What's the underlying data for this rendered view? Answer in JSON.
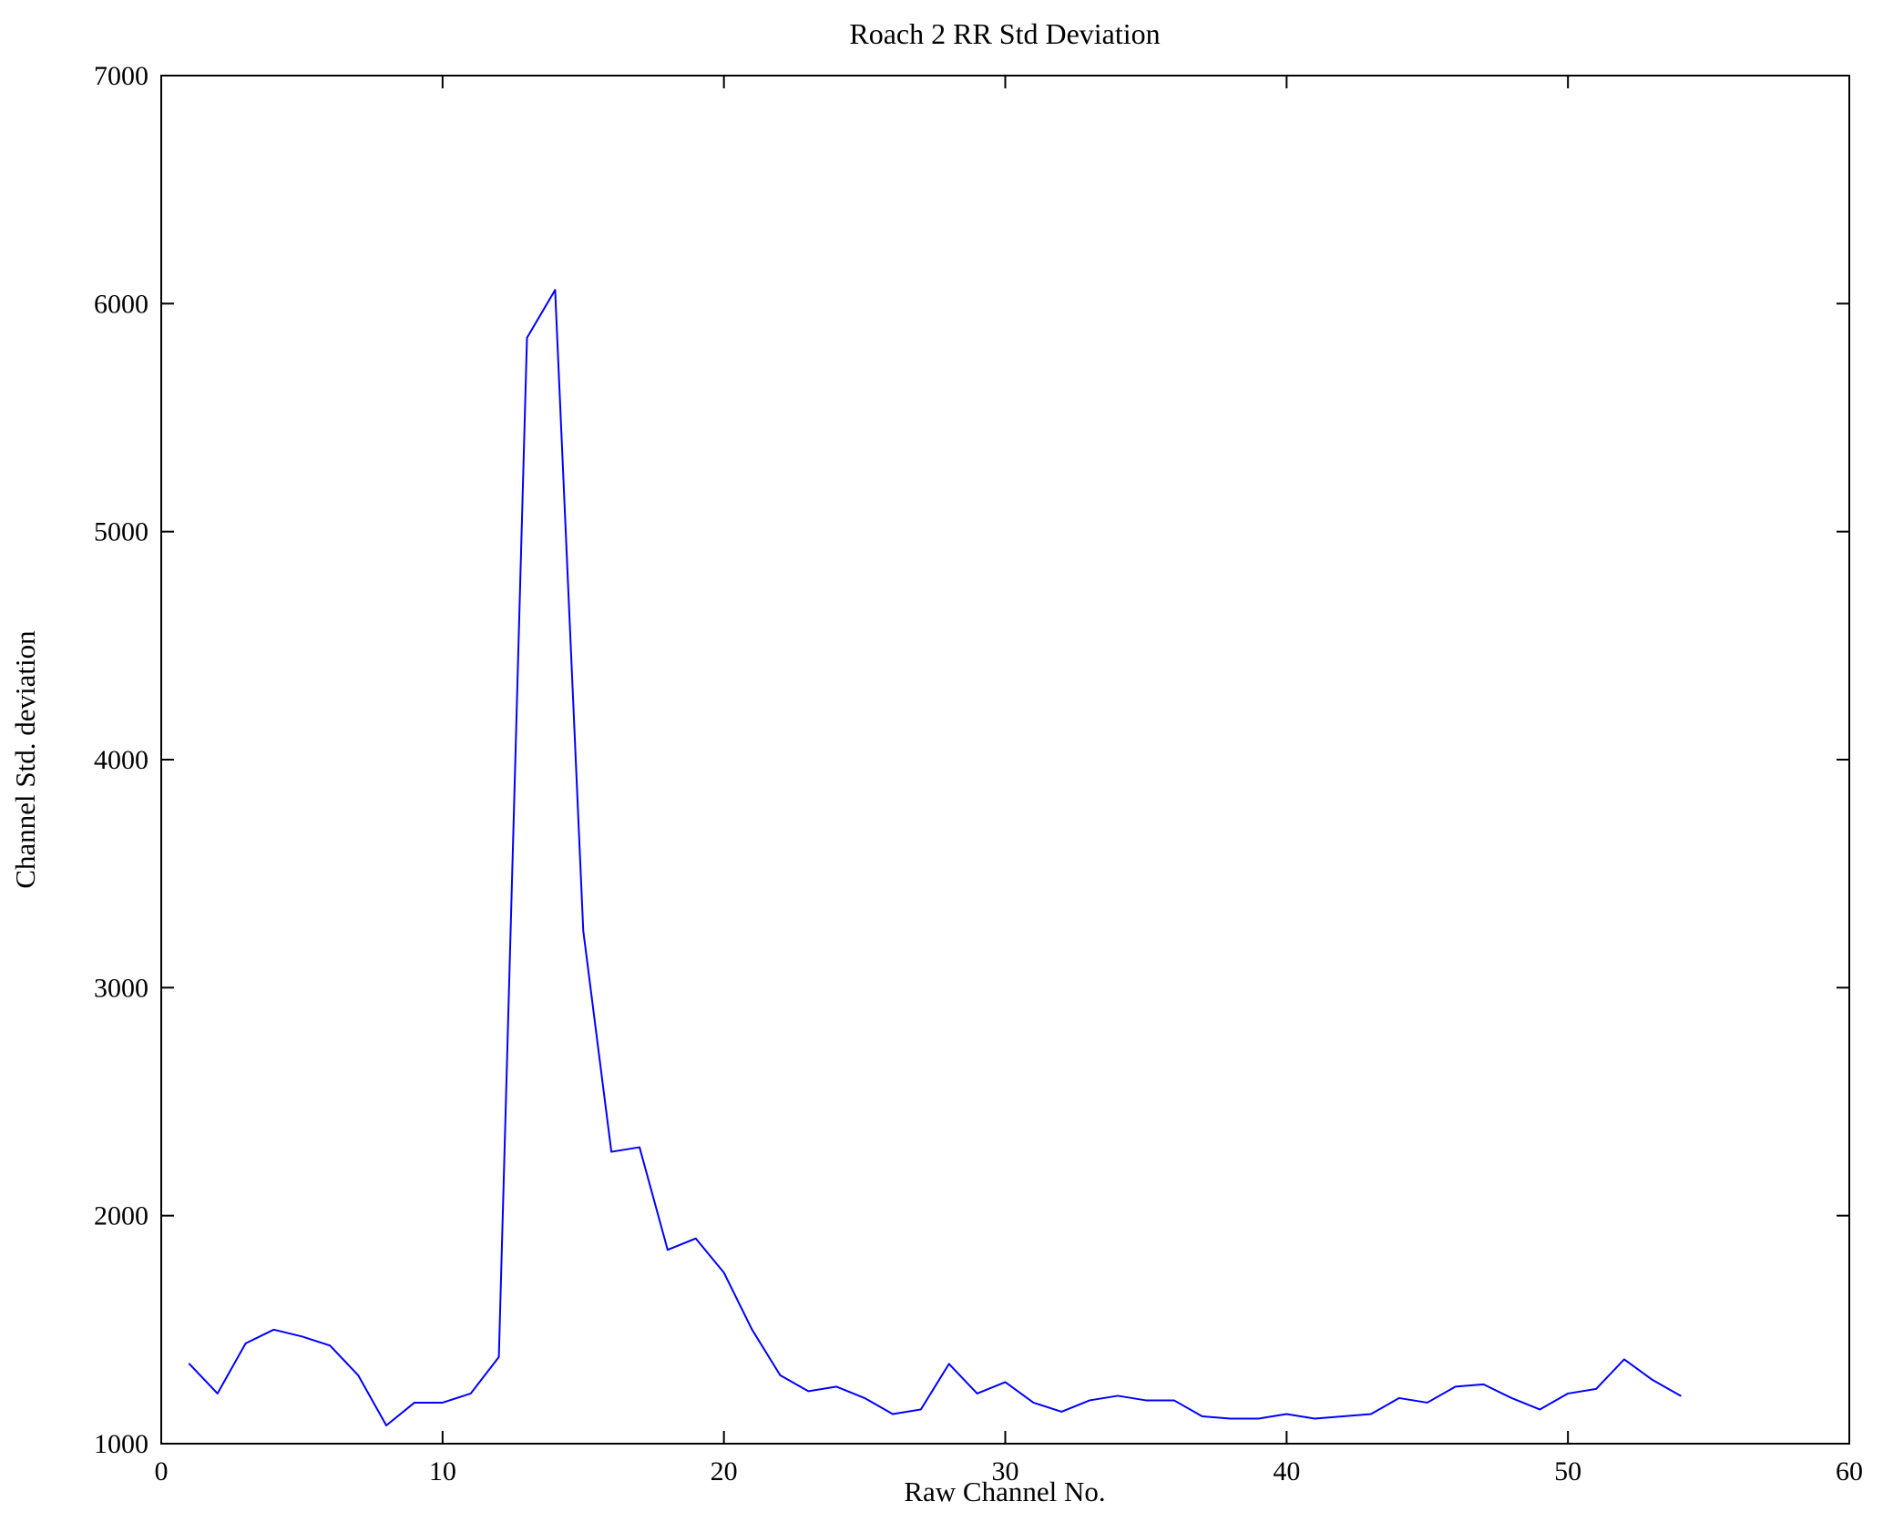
{
  "figure": {
    "title": "Roach 2 RR Std Deviation",
    "xlabel": "Raw Channel No.",
    "ylabel": "Channel Std. deviation"
  },
  "chart_data": {
    "type": "line",
    "title": "Roach 2 RR Std Deviation",
    "xlabel": "Raw Channel No.",
    "ylabel": "Channel Std. deviation",
    "xlim": [
      0,
      60
    ],
    "ylim": [
      1000,
      7000
    ],
    "x_ticks": [
      0,
      10,
      20,
      30,
      40,
      50,
      60
    ],
    "y_ticks": [
      1000,
      2000,
      3000,
      4000,
      5000,
      6000,
      7000
    ],
    "grid": false,
    "legend": null,
    "line_color": "#0000ff",
    "axis_color": "#000000",
    "x": [
      1,
      2,
      3,
      4,
      5,
      6,
      7,
      8,
      9,
      10,
      11,
      12,
      13,
      14,
      15,
      16,
      17,
      18,
      19,
      20,
      21,
      22,
      23,
      24,
      25,
      26,
      27,
      28,
      29,
      30,
      31,
      32,
      33,
      34,
      35,
      36,
      37,
      38,
      39,
      40,
      41,
      42,
      43,
      44,
      45,
      46,
      47,
      48,
      49,
      50,
      51,
      52,
      53,
      54
    ],
    "y": [
      1350,
      1220,
      1440,
      1500,
      1470,
      1430,
      1300,
      1080,
      1180,
      1180,
      1220,
      1380,
      5850,
      6060,
      3250,
      2280,
      2300,
      1850,
      1900,
      1750,
      1500,
      1300,
      1230,
      1250,
      1200,
      1130,
      1150,
      1350,
      1220,
      1270,
      1180,
      1140,
      1190,
      1210,
      1190,
      1190,
      1120,
      1110,
      1110,
      1130,
      1110,
      1120,
      1130,
      1200,
      1180,
      1250,
      1260,
      1200,
      1150,
      1220,
      1240,
      1370,
      1280,
      1210
    ]
  }
}
